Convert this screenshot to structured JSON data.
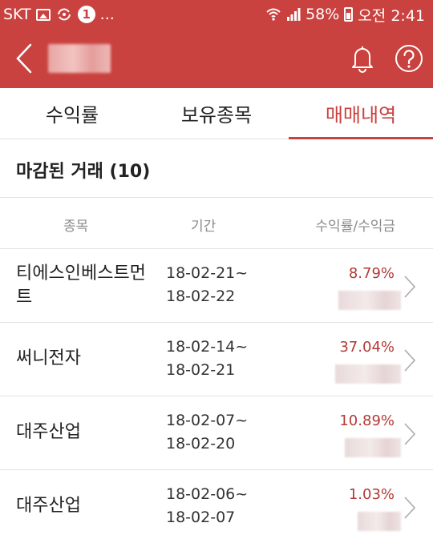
{
  "status_bar": {
    "carrier": "SKT",
    "notification_count": "1",
    "more": "...",
    "battery": "58%",
    "clock": "오전 2:41"
  },
  "tabs": [
    {
      "label": "수익률",
      "active": false
    },
    {
      "label": "보유종목",
      "active": false
    },
    {
      "label": "매매내역",
      "active": true
    }
  ],
  "section": {
    "title": "마감된 거래 (10)"
  },
  "columns": {
    "stock": "종목",
    "period": "기간",
    "return": "수익률/수익금"
  },
  "rows": [
    {
      "name": "티에스인베스트먼트",
      "start": "18-02-21~",
      "end": "18-02-22",
      "rate": "8.79%"
    },
    {
      "name": "써니전자",
      "start": "18-02-14~",
      "end": "18-02-21",
      "rate": "37.04%"
    },
    {
      "name": "대주산업",
      "start": "18-02-07~",
      "end": "18-02-20",
      "rate": "10.89%"
    },
    {
      "name": "대주산업",
      "start": "18-02-06~",
      "end": "18-02-07",
      "rate": "1.03%"
    }
  ],
  "colors": {
    "accent": "#c9423f",
    "rate": "#b33a37"
  }
}
